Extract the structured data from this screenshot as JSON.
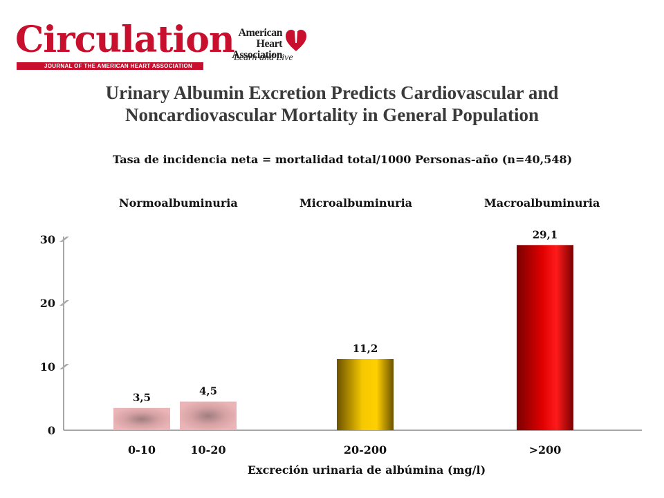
{
  "header": {
    "journal_logo": "Circulation",
    "journal_tagline": "JOURNAL OF THE AMERICAN HEART ASSOCIATION",
    "aha_name": "American Heart Association",
    "aha_tagline": "Learn and Live"
  },
  "chart_data": {
    "type": "bar",
    "title": "Urinary Albumin Excretion Predicts Cardiovascular and Noncardiovascular Mortality in General Population",
    "subtitle": "Tasa de incidencia neta = mortalidad total/1000 Personas-año (n=40,548)",
    "xlabel": "Excreción urinaria de albúmina (mg/l)",
    "ylabel": "",
    "ylim": [
      0,
      30
    ],
    "yticks": [
      "0",
      "10",
      "20",
      "30"
    ],
    "grid": false,
    "categories": [
      "0-10",
      "10-20",
      "20-200",
      ">200"
    ],
    "values": [
      3.5,
      4.5,
      11.2,
      29.1
    ],
    "value_labels": [
      "3,5",
      "4,5",
      "11,2",
      "29,1"
    ],
    "groups": [
      "Normoalbuminuria",
      "Microalbuminuria",
      "Macroalbuminuria"
    ],
    "bar_colors": [
      "#e9a9ab",
      "#e9a9ab",
      "#f2c200",
      "#d40000"
    ]
  }
}
